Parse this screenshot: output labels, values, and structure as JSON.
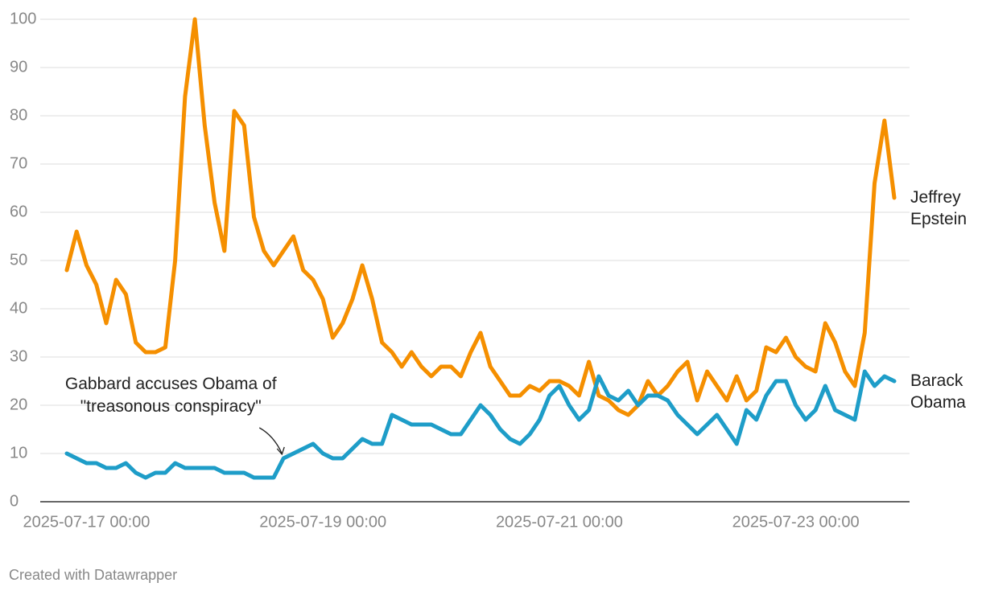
{
  "chart_data": {
    "type": "line",
    "x": [
      "2025-07-16 20:00",
      "2025-07-16 22:00",
      "2025-07-17 00:00",
      "2025-07-17 02:00",
      "2025-07-17 04:00",
      "2025-07-17 06:00",
      "2025-07-17 08:00",
      "2025-07-17 10:00",
      "2025-07-17 12:00",
      "2025-07-17 14:00",
      "2025-07-17 16:00",
      "2025-07-17 18:00",
      "2025-07-17 20:00",
      "2025-07-17 22:00",
      "2025-07-18 00:00",
      "2025-07-18 02:00",
      "2025-07-18 04:00",
      "2025-07-18 06:00",
      "2025-07-18 08:00",
      "2025-07-18 10:00",
      "2025-07-18 12:00",
      "2025-07-18 14:00",
      "2025-07-18 16:00",
      "2025-07-18 18:00",
      "2025-07-18 20:00",
      "2025-07-18 22:00",
      "2025-07-19 00:00",
      "2025-07-19 02:00",
      "2025-07-19 04:00",
      "2025-07-19 06:00",
      "2025-07-19 08:00",
      "2025-07-19 10:00",
      "2025-07-19 12:00",
      "2025-07-19 14:00",
      "2025-07-19 16:00",
      "2025-07-19 18:00",
      "2025-07-19 20:00",
      "2025-07-19 22:00",
      "2025-07-20 00:00",
      "2025-07-20 02:00",
      "2025-07-20 04:00",
      "2025-07-20 06:00",
      "2025-07-20 08:00",
      "2025-07-20 10:00",
      "2025-07-20 12:00",
      "2025-07-20 14:00",
      "2025-07-20 16:00",
      "2025-07-20 18:00",
      "2025-07-20 20:00",
      "2025-07-20 22:00",
      "2025-07-21 00:00",
      "2025-07-21 02:00",
      "2025-07-21 04:00",
      "2025-07-21 06:00",
      "2025-07-21 08:00",
      "2025-07-21 10:00",
      "2025-07-21 12:00",
      "2025-07-21 14:00",
      "2025-07-21 16:00",
      "2025-07-21 18:00",
      "2025-07-21 20:00",
      "2025-07-21 22:00",
      "2025-07-22 00:00",
      "2025-07-22 02:00",
      "2025-07-22 04:00",
      "2025-07-22 06:00",
      "2025-07-22 08:00",
      "2025-07-22 10:00",
      "2025-07-22 12:00",
      "2025-07-22 14:00",
      "2025-07-22 16:00",
      "2025-07-22 18:00",
      "2025-07-22 20:00",
      "2025-07-22 22:00",
      "2025-07-23 00:00",
      "2025-07-23 02:00",
      "2025-07-23 04:00",
      "2025-07-23 06:00",
      "2025-07-23 08:00",
      "2025-07-23 10:00",
      "2025-07-23 12:00",
      "2025-07-23 14:00",
      "2025-07-23 16:00",
      "2025-07-23 18:00",
      "2025-07-23 20:00"
    ],
    "series": [
      {
        "name": "Jeffrey Epstein",
        "color": "#f58f00",
        "values": [
          48,
          56,
          49,
          45,
          37,
          46,
          43,
          33,
          31,
          31,
          32,
          50,
          84,
          100,
          78,
          62,
          52,
          81,
          78,
          59,
          52,
          49,
          52,
          55,
          48,
          46,
          42,
          34,
          37,
          42,
          49,
          42,
          33,
          31,
          28,
          31,
          28,
          26,
          28,
          28,
          26,
          31,
          35,
          28,
          25,
          22,
          22,
          24,
          23,
          25,
          25,
          24,
          22,
          29,
          22,
          21,
          19,
          18,
          20,
          25,
          22,
          24,
          27,
          29,
          21,
          27,
          24,
          21,
          26,
          21,
          23,
          32,
          31,
          34,
          30,
          28,
          27,
          37,
          33,
          27,
          24,
          35,
          66,
          79,
          63
        ]
      },
      {
        "name": "Barack Obama",
        "color": "#1e9dc8",
        "values": [
          10,
          9,
          8,
          8,
          7,
          7,
          8,
          6,
          5,
          6,
          6,
          8,
          7,
          7,
          7,
          7,
          6,
          6,
          6,
          5,
          5,
          5,
          9,
          10,
          11,
          12,
          10,
          9,
          9,
          11,
          13,
          12,
          12,
          18,
          17,
          16,
          16,
          16,
          15,
          14,
          14,
          17,
          20,
          18,
          15,
          13,
          12,
          14,
          17,
          22,
          24,
          20,
          17,
          19,
          26,
          22,
          21,
          23,
          20,
          22,
          22,
          21,
          18,
          16,
          14,
          16,
          18,
          15,
          12,
          19,
          17,
          22,
          25,
          25,
          20,
          17,
          19,
          24,
          19,
          18,
          17,
          27,
          24,
          26,
          25
        ]
      }
    ],
    "xlim": [
      "2025-07-16 20:00",
      "2025-07-23 20:00"
    ],
    "xticks": [
      "2025-07-17 00:00",
      "2025-07-19 00:00",
      "2025-07-21 00:00",
      "2025-07-23 00:00"
    ],
    "ylim": [
      0,
      100
    ],
    "yticks": [
      0,
      10,
      20,
      30,
      40,
      50,
      60,
      70,
      80,
      90,
      100
    ],
    "grid": true,
    "annotation": {
      "text": "Gabbard accuses Obama of \"treasonous conspiracy\"",
      "x": "2025-07-18 16:00",
      "y": 9
    },
    "footer": "Created with Datawrapper"
  }
}
